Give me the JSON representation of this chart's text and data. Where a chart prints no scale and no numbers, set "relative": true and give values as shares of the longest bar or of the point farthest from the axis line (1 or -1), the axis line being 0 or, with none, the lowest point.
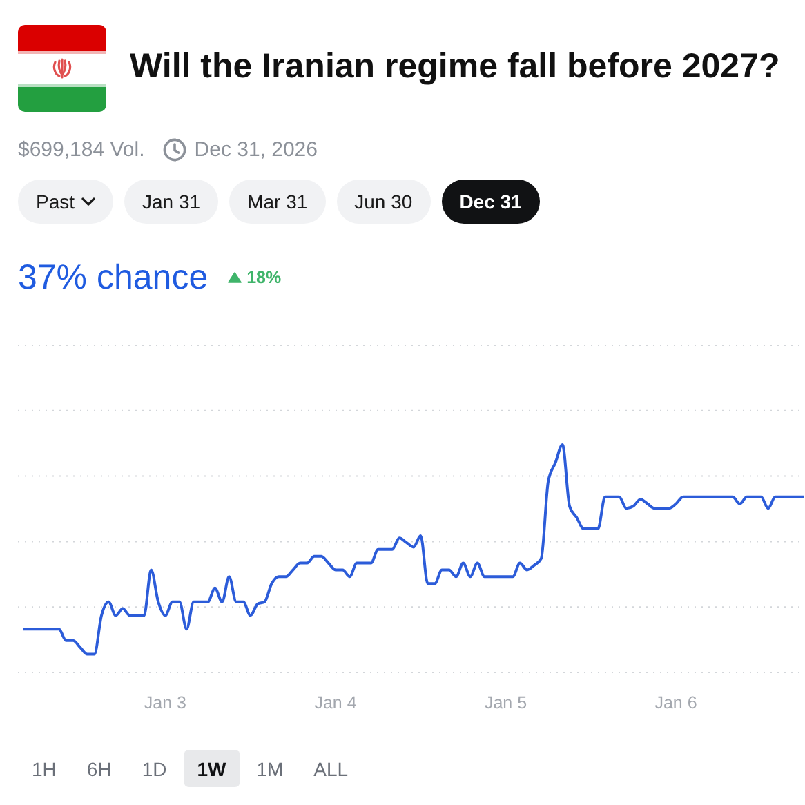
{
  "chart_data": {
    "type": "line",
    "title": "Will the Iranian regime fall before 2027?",
    "annotations": [
      "$699,184 Vol.",
      "Dec 31, 2026",
      "Past",
      "Jan 31",
      "Mar 31",
      "Jun 30",
      "Dec 31",
      "37% chance",
      "18%",
      "1H",
      "6H",
      "1D",
      "1W",
      "1M",
      "ALL"
    ],
    "categories": [
      null,
      null,
      null,
      null,
      null,
      null,
      null,
      null,
      null,
      null,
      null,
      null,
      null,
      null,
      null,
      null,
      null,
      null,
      null,
      null,
      "Jan 3",
      null,
      null,
      null,
      null,
      null,
      null,
      null,
      null,
      null,
      null,
      null,
      null,
      null,
      null,
      null,
      null,
      null,
      null,
      null,
      null,
      null,
      null,
      null,
      "Jan 4",
      null,
      null,
      null,
      null,
      null,
      null,
      null,
      null,
      null,
      null,
      null,
      null,
      null,
      null,
      null,
      null,
      null,
      null,
      null,
      null,
      null,
      null,
      null,
      "Jan 5",
      null,
      null,
      null,
      null,
      null,
      null,
      null,
      null,
      null,
      null,
      null,
      null,
      null,
      null,
      null,
      null,
      null,
      null,
      null,
      null,
      null,
      null,
      null,
      "Jan 6",
      null,
      null,
      null,
      null,
      null,
      null,
      null,
      null,
      null,
      null,
      null,
      null,
      null,
      null,
      null,
      null,
      null,
      null
    ],
    "series": [
      {
        "color": "#2c5cd9",
        "values": [
          0.19,
          0.19,
          0.19,
          0.19,
          0.19,
          0.19,
          0.14,
          0.14,
          0.11,
          0.08,
          0.08,
          0.25,
          0.31,
          0.25,
          0.28,
          0.25,
          0.25,
          0.25,
          0.45,
          0.31,
          0.25,
          0.31,
          0.31,
          0.19,
          0.31,
          0.31,
          0.31,
          0.37,
          0.31,
          0.42,
          0.31,
          0.31,
          0.25,
          0.3,
          0.31,
          0.39,
          0.42,
          0.42,
          0.45,
          0.48,
          0.48,
          0.51,
          0.51,
          0.48,
          0.45,
          0.45,
          0.42,
          0.48,
          0.48,
          0.48,
          0.54,
          0.54,
          0.54,
          0.59,
          0.57,
          0.55,
          0.6,
          0.39,
          0.39,
          0.45,
          0.45,
          0.42,
          0.48,
          0.42,
          0.48,
          0.42,
          0.42,
          0.42,
          0.42,
          0.42,
          0.48,
          0.45,
          0.47,
          0.5,
          0.84,
          0.92,
          1,
          0.73,
          0.68,
          0.63,
          0.63,
          0.63,
          0.77,
          0.77,
          0.77,
          0.72,
          0.73,
          0.76,
          0.74,
          0.72,
          0.72,
          0.72,
          0.74,
          0.77,
          0.77,
          0.77,
          0.77,
          0.77,
          0.77,
          0.77,
          0.77,
          0.74,
          0.77,
          0.77,
          0.77,
          0.72,
          0.77,
          0.77,
          0.77,
          0.77,
          0.77
        ]
      }
    ],
    "relative": true,
    "grid": "y",
    "line_style": "solid"
  }
}
